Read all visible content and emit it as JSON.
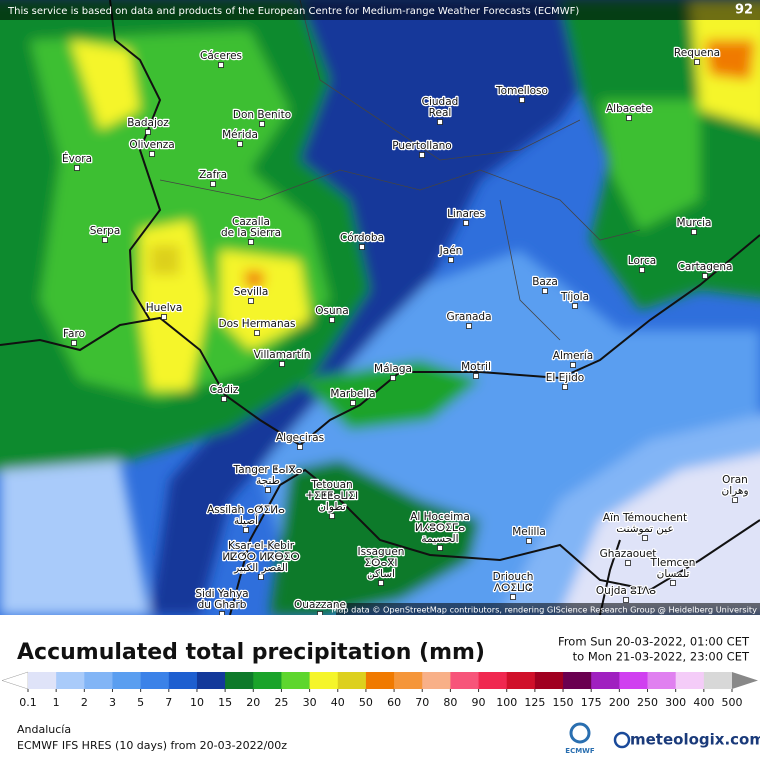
{
  "header": {
    "notice": "This service is based on data and products of the European Centre for Medium-range Weather Forecasts (ECMWF)",
    "corner_value": 92
  },
  "map": {
    "places": [
      [
        "Cáceres"
      ],
      [
        "Badajoz"
      ],
      [
        "Don Benito"
      ],
      [
        "Mérida"
      ],
      [
        "Olivenza"
      ],
      [
        "Évora"
      ],
      [
        "Zafra"
      ],
      [
        "Serpa"
      ],
      [
        "Cazalla",
        "de la Sierra"
      ],
      [
        "Córdoba"
      ],
      [
        "Linares"
      ],
      [
        "Jaén"
      ],
      [
        "Sevilla"
      ],
      [
        "Dos Hermanas"
      ],
      [
        "Huelva"
      ],
      [
        "Osuna"
      ],
      [
        "Faro"
      ],
      [
        "Villamartín"
      ],
      [
        "Cádiz"
      ],
      [
        "Marbella"
      ],
      [
        "Algeciras"
      ],
      [
        "Málaga"
      ],
      [
        "Motril"
      ],
      [
        "Granada"
      ],
      [
        "Baza"
      ],
      [
        "Tíjola"
      ],
      [
        "Almería"
      ],
      [
        "El Ejido"
      ],
      [
        "Lorca"
      ],
      [
        "Murcia"
      ],
      [
        "Cartagena"
      ],
      [
        "Albacete"
      ],
      [
        "Tomelloso"
      ],
      [
        "Ciudad",
        "Real"
      ],
      [
        "Puertollano"
      ],
      [
        "Requena"
      ],
      [
        "Tanger ⵟⴰⵏⴳⴰ",
        "طنجة"
      ],
      [
        "Tetouan",
        "ⵜⵉⵟⵟⴰⵡⵉⵏ",
        "تطوان"
      ],
      [
        "Assilah ⴰⵚⵉⵍⴰ",
        "أصيلة"
      ],
      [
        "Ksar-el-Kebir",
        "ⵍⵇⵚⵔ ⵍⴽⴱⵉⵔ",
        "القصر الكبير"
      ],
      [
        "Sidi Yahya",
        "du Gharb"
      ],
      [
        "Ouazzane"
      ],
      [
        "Al Hoceima",
        "ⵍⵃⵓⵙⵉⵎⴰ",
        "الحسيمة"
      ],
      [
        "Issaguen",
        "ⵉⵙⴰⴳⵏ",
        "اساكن"
      ],
      [
        "Melilla"
      ],
      [
        "Driouch",
        "ⴷⵔⵉⵡⵛ"
      ],
      [
        "Oujda ⵓⵊⴷⴰ"
      ],
      [
        "Ghazaouet"
      ],
      [
        "Tlemcen",
        "تلمسان"
      ],
      [
        "Aïn Témouchent",
        "عين تموشنت"
      ],
      [
        "Oran",
        "وهران"
      ]
    ],
    "attribution": "Map data © OpenStreetMap contributors, rendering GIScience Research Group @ Heidelberg University"
  },
  "footer": {
    "title": "Accumulated total precipitation (mm)",
    "period_from": "From Sun 20-03-2022, 01:00 CET",
    "period_to": "to Mon 21-03-2022, 23:00 CET",
    "region": "Andalucía",
    "model": "ECMWF IFS HRES (10 days) from 20-03-2022/00z",
    "ecmwf_logo": "ECMWF",
    "brand": "meteologix.com"
  },
  "legend": {
    "levels": [
      0.1,
      1,
      2,
      3,
      5,
      7,
      10,
      15,
      20,
      25,
      30,
      40,
      50,
      60,
      70,
      80,
      90,
      100,
      125,
      150,
      175,
      200,
      250,
      300,
      400,
      500
    ],
    "colors": [
      "#ffffff",
      "#dfe3f8",
      "#a9cbfa",
      "#82b5f6",
      "#5a9ef0",
      "#3b82e8",
      "#1e5fd0",
      "#13399a",
      "#0e7a2a",
      "#1aa32a",
      "#5ed62e",
      "#f5f52a",
      "#ddd01e",
      "#f07a00",
      "#f5963a",
      "#f8b088",
      "#f7557a",
      "#f02850",
      "#d0102a",
      "#a00020",
      "#6a0050",
      "#a020c0",
      "#d040f0",
      "#e080f0",
      "#f4ccf8",
      "#d8d8d8",
      "#888888"
    ]
  }
}
